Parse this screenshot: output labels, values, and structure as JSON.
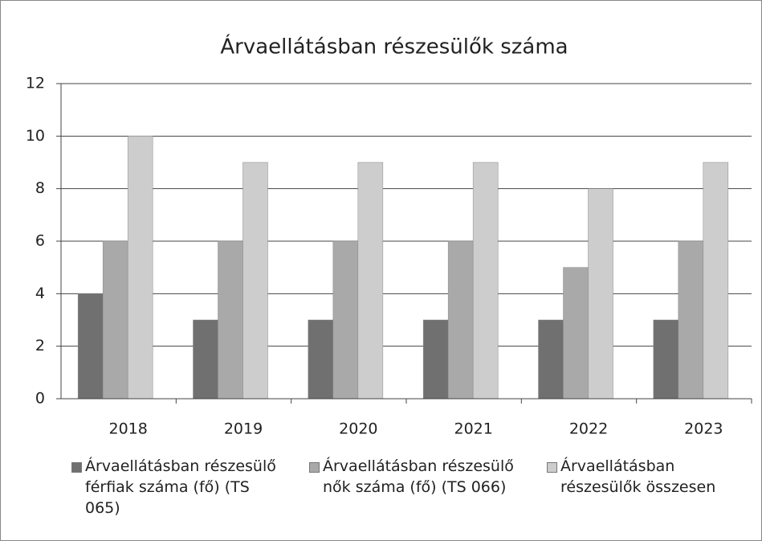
{
  "chart_data": {
    "type": "bar",
    "title": "Árvaellátásban részesülők száma",
    "categories": [
      "2018",
      "2019",
      "2020",
      "2021",
      "2022",
      "2023"
    ],
    "series": [
      {
        "name": "Árvaellátásban részesülő férfiak száma (fő) (TS 065)",
        "color": "#707070",
        "values": [
          4,
          3,
          3,
          3,
          3,
          3
        ]
      },
      {
        "name": "Árvaellátásban részesülő nők száma (fő) (TS 066)",
        "color": "#a9a9a9",
        "values": [
          6,
          6,
          6,
          6,
          5,
          6
        ]
      },
      {
        "name": "Árvaellátásban részesülők összesen",
        "color": "#cdcdcd",
        "values": [
          10,
          9,
          9,
          9,
          8,
          9
        ]
      }
    ],
    "ylim": [
      0,
      12
    ],
    "yticks": [
      0,
      2,
      4,
      6,
      8,
      10,
      12
    ],
    "grid": true,
    "legend": "bottom"
  }
}
